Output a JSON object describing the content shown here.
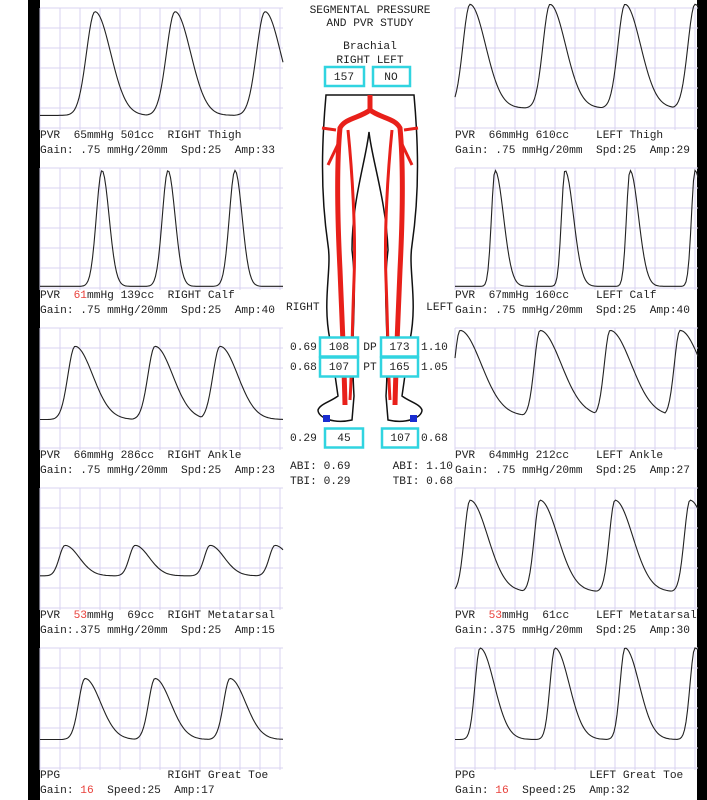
{
  "header": {
    "title_line1": "SEGMENTAL PRESSURE",
    "title_line2": "AND PVR STUDY",
    "brachial_label": "Brachial",
    "right_left": "RIGHT LEFT",
    "brachial_right": "157",
    "brachial_left": "NO"
  },
  "side_labels": {
    "right": "RIGHT",
    "left": "LEFT"
  },
  "pressures": [
    {
      "r_index": "0.69",
      "r_value": "108",
      "label": "DP",
      "l_value": "173",
      "l_index": "1.10"
    },
    {
      "r_index": "0.68",
      "r_value": "107",
      "label": "PT",
      "l_value": "165",
      "l_index": "1.05"
    },
    {
      "r_index": "0.29",
      "r_value": "45",
      "l_value": "107",
      "l_index": "0.68"
    }
  ],
  "indices": {
    "right_abi": "ABI: 0.69",
    "right_tbi": "TBI: 0.29",
    "left_abi": "ABI: 1.10",
    "left_tbi": "TBI: 0.68"
  },
  "panels": {
    "right_limb": [
      {
        "line1": [
          "PVR  65mmHg 501cc  RIGHT Thigh"
        ],
        "line2": [
          "Gain: .75 mmHg/20mm  Spd:25  Amp:33"
        ]
      },
      {
        "line1": [
          "PVR  ",
          {
            "text": "61",
            "color": "#e8403a"
          },
          "mmHg 139cc  RIGHT Calf"
        ],
        "line2": [
          "Gain: .75 mmHg/20mm  Spd:25  Amp:40"
        ]
      },
      {
        "line1": [
          "PVR  66mmHg 286cc  RIGHT Ankle"
        ],
        "line2": [
          "Gain: .75 mmHg/20mm  Spd:25  Amp:23"
        ]
      },
      {
        "line1": [
          "PVR  ",
          {
            "text": "53",
            "color": "#e8403a"
          },
          "mmHg  69cc  RIGHT Metatarsal"
        ],
        "line2": [
          "Gain:.375 mmHg/20mm  Spd:25  Amp:15"
        ]
      },
      {
        "line1": [
          "PPG                RIGHT Great Toe"
        ],
        "line2": [
          "Gain: ",
          {
            "text": "16",
            "color": "#e8403a"
          },
          "  Speed:25  Amp:17"
        ]
      }
    ],
    "left_limb": [
      {
        "line1": [
          "PVR  66mmHg 610cc    LEFT Thigh"
        ],
        "line2": [
          "Gain: .75 mmHg/20mm  Spd:25  Amp:29"
        ]
      },
      {
        "line1": [
          "PVR  67mmHg 160cc    LEFT Calf"
        ],
        "line2": [
          "Gain: .75 mmHg/20mm  Spd:25  Amp:40"
        ]
      },
      {
        "line1": [
          "PVR  64mmHg 212cc    LEFT Ankle"
        ],
        "line2": [
          "Gain: .75 mmHg/20mm  Spd:25  Amp:27"
        ]
      },
      {
        "line1": [
          "PVR  ",
          {
            "text": "53",
            "color": "#e8403a"
          },
          "mmHg  61cc    LEFT Metatarsal"
        ],
        "line2": [
          "Gain:.375 mmHg/20mm  Spd:25  Amp:30"
        ]
      },
      {
        "line1": [
          "PPG                 LEFT Great Toe"
        ],
        "line2": [
          "Gain: ",
          {
            "text": "16",
            "color": "#e8403a"
          },
          "  Speed:25  Amp:32"
        ]
      }
    ]
  }
}
